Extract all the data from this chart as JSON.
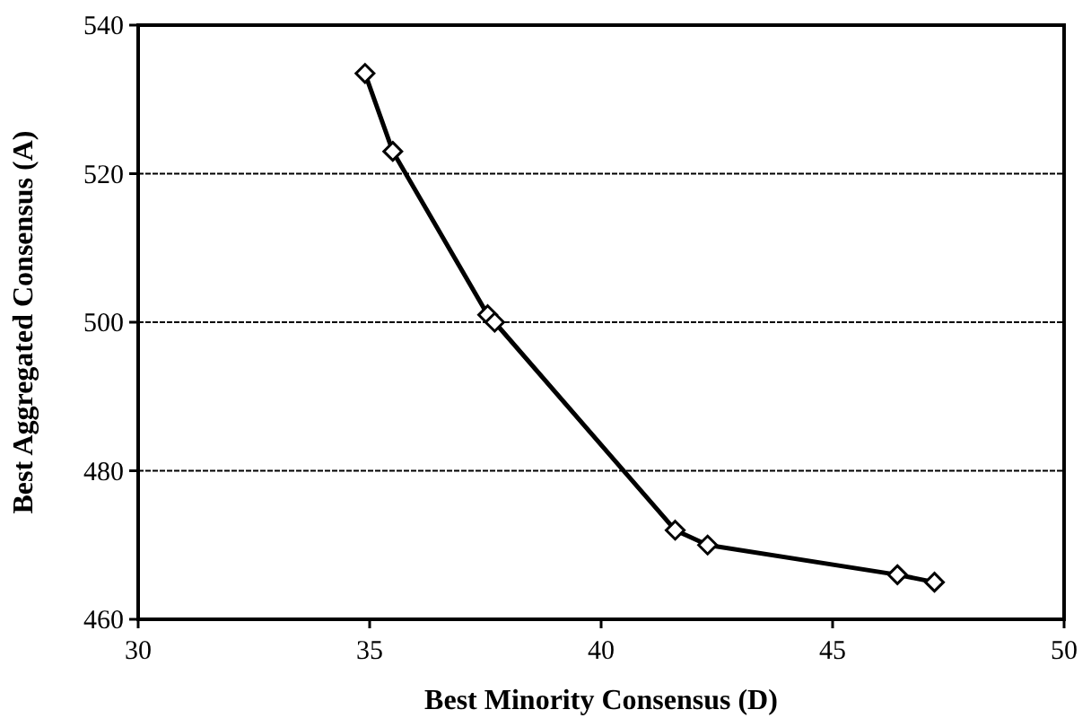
{
  "chart_data": {
    "type": "line",
    "xlabel": "Best Minority Consensus (D)",
    "ylabel": "Best Aggregated Consensus (A)",
    "x": [
      34.9,
      35.5,
      37.55,
      37.7,
      41.6,
      42.3,
      46.4,
      47.2
    ],
    "series": [
      {
        "color": "#000000",
        "values": [
          533.5,
          523,
          501,
          500,
          472,
          470,
          466,
          465
        ]
      }
    ],
    "xlim": [
      30,
      50
    ],
    "xticks": [
      30,
      35,
      40,
      45,
      50
    ],
    "ylim": [
      460,
      540
    ],
    "yticks": [
      460,
      480,
      500,
      520,
      540
    ],
    "grid": "y",
    "marker": "diamond",
    "line_style": "solid"
  }
}
